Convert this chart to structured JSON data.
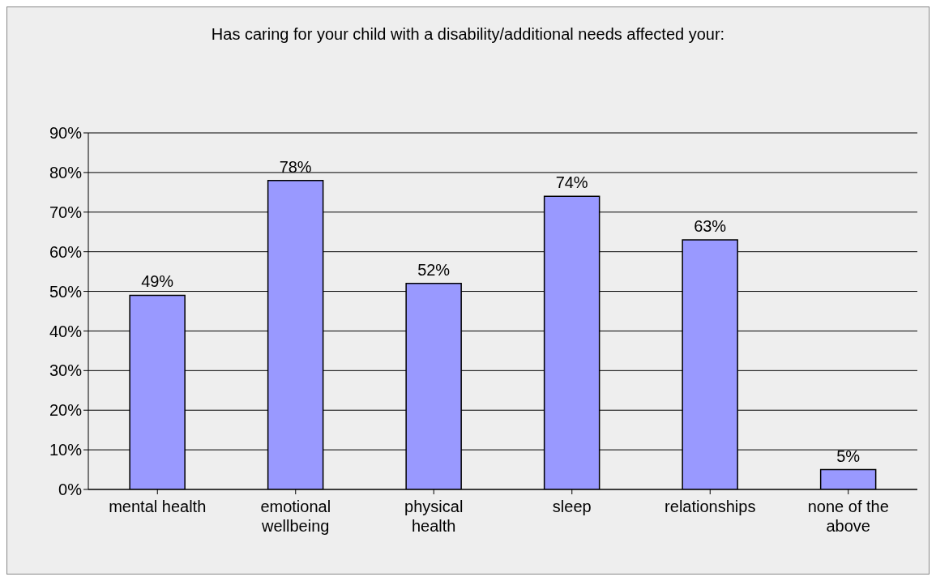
{
  "chart_data": {
    "type": "bar",
    "title": "Has caring for your child with a disability/additional needs affected your:",
    "categories": [
      "mental health",
      "emotional wellbeing",
      "physical health",
      "sleep",
      "relationships",
      "none of the above"
    ],
    "values": [
      49,
      78,
      52,
      74,
      63,
      5
    ],
    "value_labels": [
      "49%",
      "78%",
      "52%",
      "74%",
      "63%",
      "5%"
    ],
    "color": "#9999ff",
    "ylim": [
      0,
      90
    ],
    "yticks": [
      {
        "value": 0,
        "label": "0%"
      },
      {
        "value": 10,
        "label": "10%"
      },
      {
        "value": 20,
        "label": "20%"
      },
      {
        "value": 30,
        "label": "30%"
      },
      {
        "value": 40,
        "label": "40%"
      },
      {
        "value": 50,
        "label": "50%"
      },
      {
        "value": 60,
        "label": "60%"
      },
      {
        "value": 70,
        "label": "70%"
      },
      {
        "value": 80,
        "label": "80%"
      },
      {
        "value": 90,
        "label": "90%"
      }
    ],
    "grid": "y",
    "legend": false
  }
}
